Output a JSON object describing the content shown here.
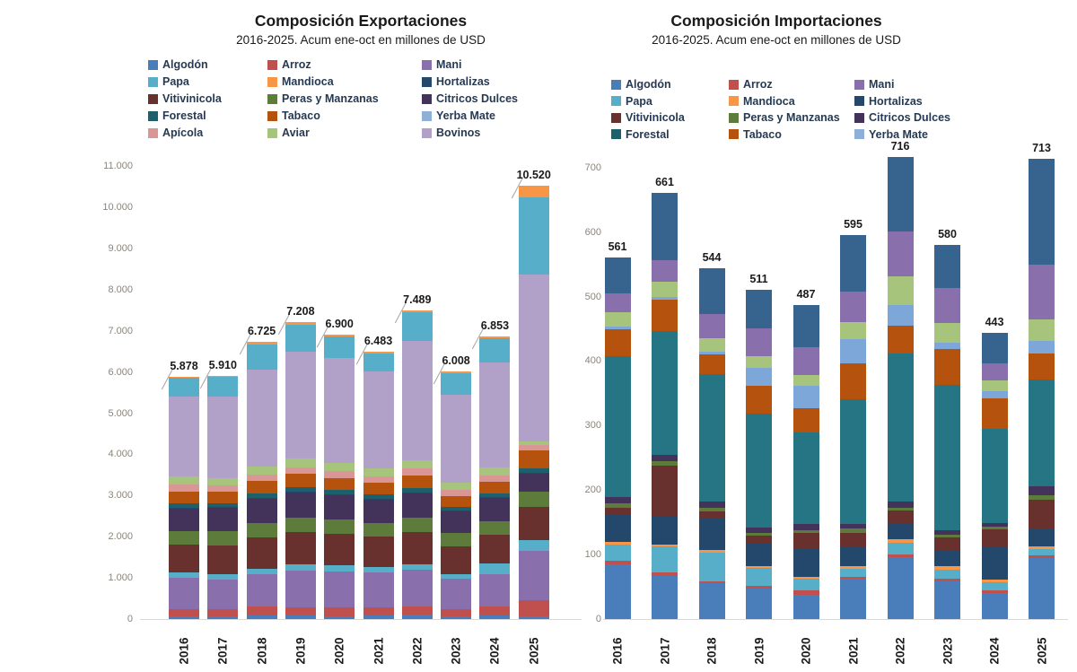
{
  "charts": [
    {
      "id": "exportaciones",
      "title": "Composición Exportaciones",
      "subtitle": "2016-2025. Acum ene-oct en millones de USD",
      "chart_data": {
        "type": "bar",
        "stacked": true,
        "categories": [
          "2016",
          "2017",
          "2018",
          "2019",
          "2020",
          "2021",
          "2022",
          "2023",
          "2024",
          "2025"
        ],
        "totals": [
          5878,
          5910,
          6725,
          7208,
          6900,
          6483,
          7489,
          6008,
          6853,
          10520
        ],
        "total_labels": [
          "5.878",
          "5.910",
          "6.725",
          "7.208",
          "6.900",
          "6.483",
          "7.489",
          "6.008",
          "6.853",
          "10.520"
        ],
        "ylabel": "millones de USD",
        "ylim": [
          0,
          11000
        ],
        "grid": false,
        "legend_position": "top",
        "y_tick_labels": [
          "0",
          "1.000",
          "2.000",
          "3.000",
          "4.000",
          "5.000",
          "6.000",
          "7.000",
          "8.000",
          "9.000",
          "10.000",
          "11.000"
        ],
        "y_tick_values": [
          0,
          1000,
          2000,
          3000,
          4000,
          5000,
          6000,
          7000,
          8000,
          9000,
          10000,
          11000
        ],
        "legend": [
          {
            "name": "Algodón",
            "color": "#4a7ebb"
          },
          {
            "name": "Arroz",
            "color": "#c0504d"
          },
          {
            "name": "Mani",
            "color": "#8a6fad"
          },
          {
            "name": "Papa",
            "color": "#56aec9"
          },
          {
            "name": "Mandioca",
            "color": "#f79646"
          },
          {
            "name": "Hortalizas",
            "color": "#24486b"
          },
          {
            "name": "Vitivinicola",
            "color": "#68312e"
          },
          {
            "name": "Peras y Manzanas",
            "color": "#5d7b3a"
          },
          {
            "name": "Citricos Dulces",
            "color": "#43325a"
          },
          {
            "name": "Forestal",
            "color": "#1d5f6b"
          },
          {
            "name": "Tabaco",
            "color": "#b5530e"
          },
          {
            "name": "Yerba Mate",
            "color": "#8fb0d6"
          },
          {
            "name": "Apícola",
            "color": "#d99694"
          },
          {
            "name": "Aviar",
            "color": "#a7c47c"
          },
          {
            "name": "Bovinos",
            "color": "#b1a0c7"
          }
        ],
        "stack_order": [
          {
            "name": "Algodón",
            "color": "#4a7ebb"
          },
          {
            "name": "Arroz",
            "color": "#c0504d"
          },
          {
            "name": "Mani",
            "color": "#8a6fad"
          },
          {
            "name": "Papa",
            "color": "#56aec9"
          },
          {
            "name": "Vitivinicola",
            "color": "#68312e"
          },
          {
            "name": "Peras y Manzanas",
            "color": "#5d7b3a"
          },
          {
            "name": "Citricos Dulces",
            "color": "#43325a"
          },
          {
            "name": "Hortalizas",
            "color": "#24486b"
          },
          {
            "name": "Forestal",
            "color": "#1d5f6b"
          },
          {
            "name": "Tabaco",
            "color": "#b5530e"
          },
          {
            "name": "Apícola",
            "color": "#d99694"
          },
          {
            "name": "Aviar",
            "color": "#a7c47c"
          },
          {
            "name": "Bovinos",
            "color": "#b1a0c7"
          },
          {
            "name": "Papa",
            "color": "#56aec9"
          },
          {
            "name": "Mandioca",
            "color": "#f79646"
          }
        ],
        "series_values_by_year": [
          [
            60,
            190,
            760,
            120,
            680,
            330,
            560,
            10,
            100,
            290,
            160,
            200,
            1950,
            440,
            28
          ],
          [
            55,
            180,
            720,
            130,
            700,
            340,
            580,
            10,
            95,
            280,
            150,
            190,
            1980,
            470,
            30
          ],
          [
            90,
            210,
            780,
            140,
            760,
            350,
            600,
            10,
            105,
            300,
            160,
            200,
            2350,
            620,
            50
          ],
          [
            80,
            200,
            900,
            150,
            780,
            360,
            620,
            10,
            110,
            310,
            170,
            210,
            2600,
            650,
            58
          ],
          [
            70,
            210,
            880,
            140,
            760,
            350,
            600,
            15,
            105,
            300,
            160,
            200,
            2550,
            520,
            40
          ],
          [
            85,
            190,
            850,
            130,
            740,
            340,
            580,
            12,
            100,
            290,
            155,
            190,
            2350,
            435,
            36
          ],
          [
            110,
            200,
            880,
            140,
            780,
            350,
            600,
            12,
            110,
            310,
            160,
            200,
            2900,
            690,
            47
          ],
          [
            75,
            160,
            740,
            120,
            680,
            310,
            540,
            10,
            95,
            260,
            140,
            175,
            2150,
            520,
            33
          ],
          [
            95,
            200,
            800,
            260,
            700,
            330,
            560,
            12,
            100,
            280,
            150,
            185,
            2550,
            590,
            41
          ],
          [
            75,
            390,
            1200,
            250,
            800,
            380,
            440,
            15,
            120,
            430,
            130,
            90,
            4050,
            1880,
            270
          ]
        ]
      }
    },
    {
      "id": "importaciones",
      "title": "Composición Importaciones",
      "subtitle": "2016-2025. Acum ene-oct en millones de USD",
      "chart_data": {
        "type": "bar",
        "stacked": true,
        "categories": [
          "2016",
          "2017",
          "2018",
          "2019",
          "2020",
          "2021",
          "2022",
          "2023",
          "2024",
          "2025"
        ],
        "totals": [
          561,
          661,
          544,
          511,
          487,
          595,
          716,
          580,
          443,
          713
        ],
        "total_labels": [
          "561",
          "661",
          "544",
          "511",
          "487",
          "595",
          "716",
          "580",
          "443",
          "713"
        ],
        "ylabel": "millones de USD",
        "ylim": [
          0,
          700
        ],
        "grid": false,
        "legend_position": "top",
        "y_tick_labels": [
          "0",
          "100",
          "200",
          "300",
          "400",
          "500",
          "600",
          "700"
        ],
        "y_tick_values": [
          0,
          100,
          200,
          300,
          400,
          500,
          600,
          700
        ],
        "legend": [
          {
            "name": "Algodón",
            "color": "#4a7ebb"
          },
          {
            "name": "Arroz",
            "color": "#c0504d"
          },
          {
            "name": "Mani",
            "color": "#8a6fad"
          },
          {
            "name": "Papa",
            "color": "#56aec9"
          },
          {
            "name": "Mandioca",
            "color": "#f79646"
          },
          {
            "name": "Hortalizas",
            "color": "#24486b"
          },
          {
            "name": "Vitivinicola",
            "color": "#68312e"
          },
          {
            "name": "Peras y Manzanas",
            "color": "#5d7b3a"
          },
          {
            "name": "Citricos Dulces",
            "color": "#43325a"
          },
          {
            "name": "Forestal",
            "color": "#1d5f6b"
          },
          {
            "name": "Tabaco",
            "color": "#b5530e"
          },
          {
            "name": "Yerba Mate",
            "color": "#8fb0d6"
          }
        ],
        "stack_order": [
          {
            "name": "Algodón",
            "color": "#4a7ebb"
          },
          {
            "name": "Arroz",
            "color": "#c0504d"
          },
          {
            "name": "Papa",
            "color": "#56aec9"
          },
          {
            "name": "Mandioca",
            "color": "#f79646"
          },
          {
            "name": "Hortalizas",
            "color": "#24486b"
          },
          {
            "name": "Vitivinicola",
            "color": "#68312e"
          },
          {
            "name": "Peras y Manzanas",
            "color": "#5d7b3a"
          },
          {
            "name": "Citricos Dulces",
            "color": "#43325a"
          },
          {
            "name": "Forestal",
            "color": "#257585"
          },
          {
            "name": "Tabaco",
            "color": "#b5530e"
          },
          {
            "name": "Yerba Mate",
            "color": "#7da7d9"
          },
          {
            "name": "Aviar",
            "color": "#a7c47c"
          },
          {
            "name": "Mani",
            "color": "#8a6fad"
          },
          {
            "name": "Hortalizas",
            "color": "#36648f"
          }
        ],
        "series_values_by_year": [
          [
            85,
            5,
            26,
            3,
            42,
            12,
            6,
            10,
            218,
            42,
            4,
            22,
            30,
            56
          ],
          [
            67,
            5,
            40,
            4,
            42,
            80,
            7,
            9,
            192,
            49,
            4,
            24,
            33,
            105
          ],
          [
            55,
            4,
            44,
            4,
            50,
            10,
            5,
            10,
            198,
            30,
            4,
            21,
            38,
            71
          ],
          [
            47,
            4,
            28,
            3,
            35,
            12,
            5,
            8,
            176,
            44,
            27,
            19,
            43,
            60
          ],
          [
            38,
            6,
            18,
            4,
            44,
            24,
            4,
            9,
            142,
            38,
            34,
            17,
            43,
            66
          ],
          [
            63,
            3,
            12,
            4,
            30,
            22,
            6,
            8,
            193,
            56,
            37,
            26,
            48,
            87
          ],
          [
            96,
            4,
            18,
            6,
            24,
            20,
            5,
            9,
            229,
            44,
            32,
            44,
            70,
            115
          ],
          [
            59,
            4,
            14,
            5,
            25,
            20,
            4,
            7,
            225,
            56,
            9,
            31,
            54,
            67
          ],
          [
            40,
            5,
            12,
            4,
            52,
            26,
            4,
            6,
            146,
            47,
            11,
            17,
            26,
            47
          ],
          [
            94,
            5,
            10,
            4,
            28,
            44,
            7,
            14,
            166,
            39,
            20,
            33,
            86,
            163
          ]
        ]
      }
    }
  ]
}
